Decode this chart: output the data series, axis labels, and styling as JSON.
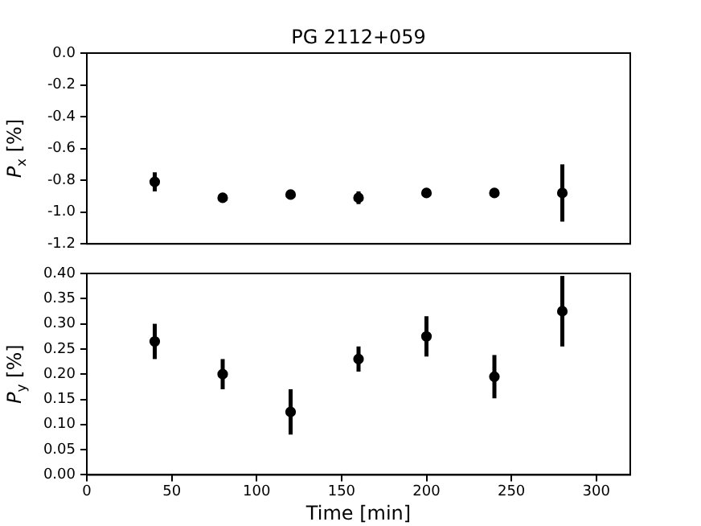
{
  "chart_data": [
    {
      "type": "scatter",
      "title": "PG 2112+059",
      "ylabel": "P$_{x}$ [%]",
      "x": [
        40,
        80,
        120,
        160,
        200,
        240,
        280
      ],
      "series": [
        {
          "color": "#000000",
          "values": [
            -0.81,
            -0.91,
            -0.89,
            -0.91,
            -0.88,
            -0.88,
            -0.88
          ],
          "errors": [
            0.06,
            0.03,
            0.03,
            0.04,
            0.02,
            0.02,
            0.18
          ]
        }
      ],
      "xlim": [
        0,
        320
      ],
      "xticks": [
        0,
        50,
        100,
        150,
        200,
        250,
        300
      ],
      "ylim": [
        -1.2,
        0
      ],
      "yticks": [
        {
          "value": -1.2,
          "label": "-1.2"
        },
        {
          "value": -1,
          "label": "-1.0"
        },
        -0.8,
        -0.6,
        -0.4,
        -0.2,
        {
          "value": 0,
          "label": "0.0"
        }
      ],
      "tick_labels": "y",
      "marker": "circle",
      "grid": false,
      "legend": false
    },
    {
      "type": "scatter",
      "xlabel": "Time [min]",
      "ylabel": "P$_{y}$ [%]",
      "x": [
        40,
        80,
        120,
        160,
        200,
        240,
        280
      ],
      "series": [
        {
          "color": "#000000",
          "values": [
            0.265,
            0.2,
            0.125,
            0.23,
            0.275,
            0.195,
            0.325
          ],
          "errors": [
            0.035,
            0.03,
            0.045,
            0.025,
            0.04,
            0.043,
            0.07
          ]
        }
      ],
      "xlim": [
        0,
        320
      ],
      "xticks": [
        0,
        50,
        100,
        150,
        200,
        250,
        300
      ],
      "ylim": [
        0,
        0.4
      ],
      "yticks": [
        {
          "value": 0,
          "label": "0.00"
        },
        0.05,
        {
          "value": 0.1,
          "label": "0.10"
        },
        0.15,
        {
          "value": 0.2,
          "label": "0.20"
        },
        0.25,
        {
          "value": 0.3,
          "label": "0.30"
        },
        0.35,
        {
          "value": 0.4,
          "label": "0.40"
        }
      ],
      "marker": "circle",
      "grid": false,
      "legend": false
    }
  ]
}
